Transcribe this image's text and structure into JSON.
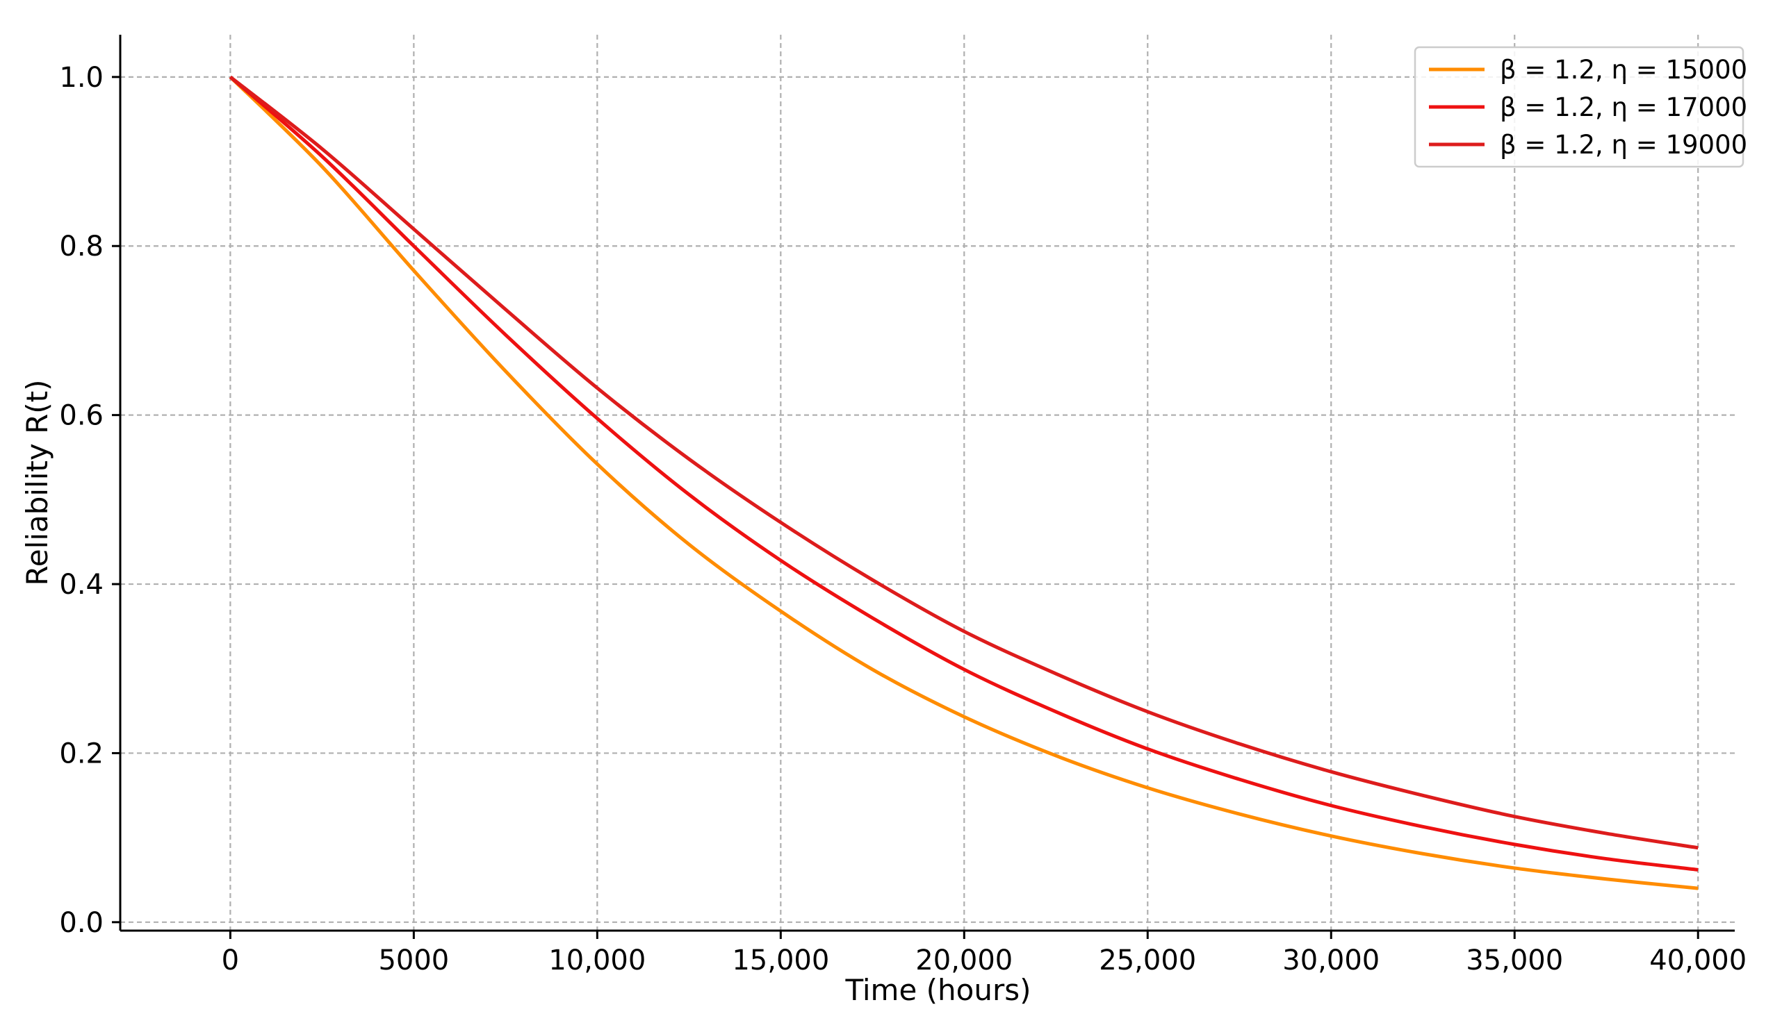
{
  "chart_data": {
    "type": "line",
    "title": "",
    "xlabel": "Time (hours)",
    "ylabel": "Reliability R(t)",
    "xlim": [
      -3000,
      41000
    ],
    "ylim": [
      -0.01,
      1.05
    ],
    "x_ticks": [
      {
        "value": 0,
        "label": "0"
      },
      {
        "value": 5000,
        "label": "5000"
      },
      {
        "value": 10000,
        "label": "10,000"
      },
      {
        "value": 15000,
        "label": "15,000"
      },
      {
        "value": 20000,
        "label": "20,000"
      },
      {
        "value": 25000,
        "label": "25,000"
      },
      {
        "value": 30000,
        "label": "30,000"
      },
      {
        "value": 35000,
        "label": "35,000"
      },
      {
        "value": 40000,
        "label": "40,000"
      }
    ],
    "y_ticks": [
      {
        "value": 0.0,
        "label": "0.0"
      },
      {
        "value": 0.2,
        "label": "0.2"
      },
      {
        "value": 0.4,
        "label": "0.4"
      },
      {
        "value": 0.6,
        "label": "0.6"
      },
      {
        "value": 0.8,
        "label": "0.8"
      },
      {
        "value": 1.0,
        "label": "1.0"
      }
    ],
    "grid": true,
    "legend_position": "top-right",
    "x": [
      0,
      2500,
      5000,
      7500,
      10000,
      12500,
      15000,
      17500,
      20000,
      22500,
      25000,
      27500,
      30000,
      32500,
      35000,
      37500,
      40000
    ],
    "series": [
      {
        "name": "β = 1.2, η = 15000",
        "color": "#ff8c00",
        "values": [
          1.0,
          0.894,
          0.771,
          0.652,
          0.542,
          0.447,
          0.368,
          0.299,
          0.243,
          0.197,
          0.159,
          0.128,
          0.102,
          0.081,
          0.064,
          0.051,
          0.04
        ]
      },
      {
        "name": "β = 1.2, η = 17000",
        "color": "#ee1111",
        "values": [
          1.0,
          0.906,
          0.8,
          0.695,
          0.596,
          0.506,
          0.428,
          0.36,
          0.299,
          0.249,
          0.205,
          0.169,
          0.138,
          0.113,
          0.092,
          0.075,
          0.062
        ]
      },
      {
        "name": "β = 1.2, η = 19000",
        "color": "#dd1c1c",
        "values": [
          1.0,
          0.915,
          0.82,
          0.725,
          0.632,
          0.548,
          0.473,
          0.405,
          0.344,
          0.294,
          0.249,
          0.211,
          0.178,
          0.15,
          0.125,
          0.105,
          0.088
        ]
      }
    ]
  }
}
